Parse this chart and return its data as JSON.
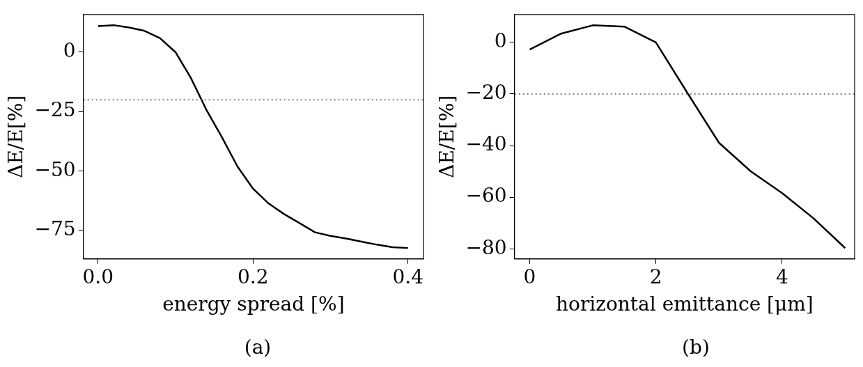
{
  "chart_data": [
    {
      "type": "line",
      "xlabel": "energy spread [%]",
      "ylabel": "ΔE/E[%]",
      "annotations": [
        "(a)"
      ],
      "x": [
        0,
        0.02,
        0.04,
        0.06,
        0.08,
        0.1,
        0.12,
        0.14,
        0.16,
        0.18,
        0.2,
        0.22,
        0.24,
        0.26,
        0.28,
        0.3,
        0.32,
        0.34,
        0.36,
        0.38,
        0.4
      ],
      "series": [
        {
          "color": "#000000",
          "values": [
            11.0,
            11.4,
            10.4,
            9.0,
            5.9,
            0,
            -11.0,
            -24.4,
            -35.9,
            -48.2,
            -57.5,
            -63.7,
            -68.2,
            -72.0,
            -75.9,
            -77.4,
            -78.5,
            -79.8,
            -81.1,
            -82.2,
            -82.5
          ]
        }
      ],
      "xlim": [
        -0.019,
        0.42
      ],
      "xticks": [
        {
          "value": 0,
          "label": "0.0"
        },
        {
          "value": 0.2,
          "label": "0.2"
        },
        {
          "value": 0.4,
          "label": "0.4"
        }
      ],
      "ylim": [
        -87.1,
        15.9
      ],
      "yticks": [
        -75,
        -50,
        -25,
        0
      ],
      "ref_lines": [
        {
          "axis": "y",
          "value": -20,
          "color": "#808080",
          "line_style": "dotted"
        }
      ],
      "grid": false,
      "legend": false,
      "marker": "none",
      "line_style": "solid"
    },
    {
      "type": "line",
      "xlabel": "horizontal emittance [μm]",
      "ylabel": "ΔE/E[%]",
      "annotations": [
        "(b)"
      ],
      "x": [
        0,
        0.5,
        1,
        1.5,
        2,
        2.5,
        3,
        3.5,
        4,
        4.5,
        5
      ],
      "series": [
        {
          "color": "#000000",
          "values": [
            -2.8,
            3.4,
            6.6,
            6.1,
            0,
            -19.6,
            -38.9,
            -49.9,
            -58.4,
            -68.2,
            -79.7
          ]
        }
      ],
      "xlim": [
        -0.24,
        5.15
      ],
      "xticks": [
        0,
        2,
        4
      ],
      "ylim": [
        -83.9,
        10.8
      ],
      "yticks": [
        -80,
        -60,
        -40,
        -20,
        0
      ],
      "ref_lines": [
        {
          "axis": "y",
          "value": -20,
          "color": "#808080",
          "line_style": "dotted"
        }
      ],
      "grid": false,
      "legend": false,
      "marker": "none",
      "line_style": "solid"
    }
  ]
}
